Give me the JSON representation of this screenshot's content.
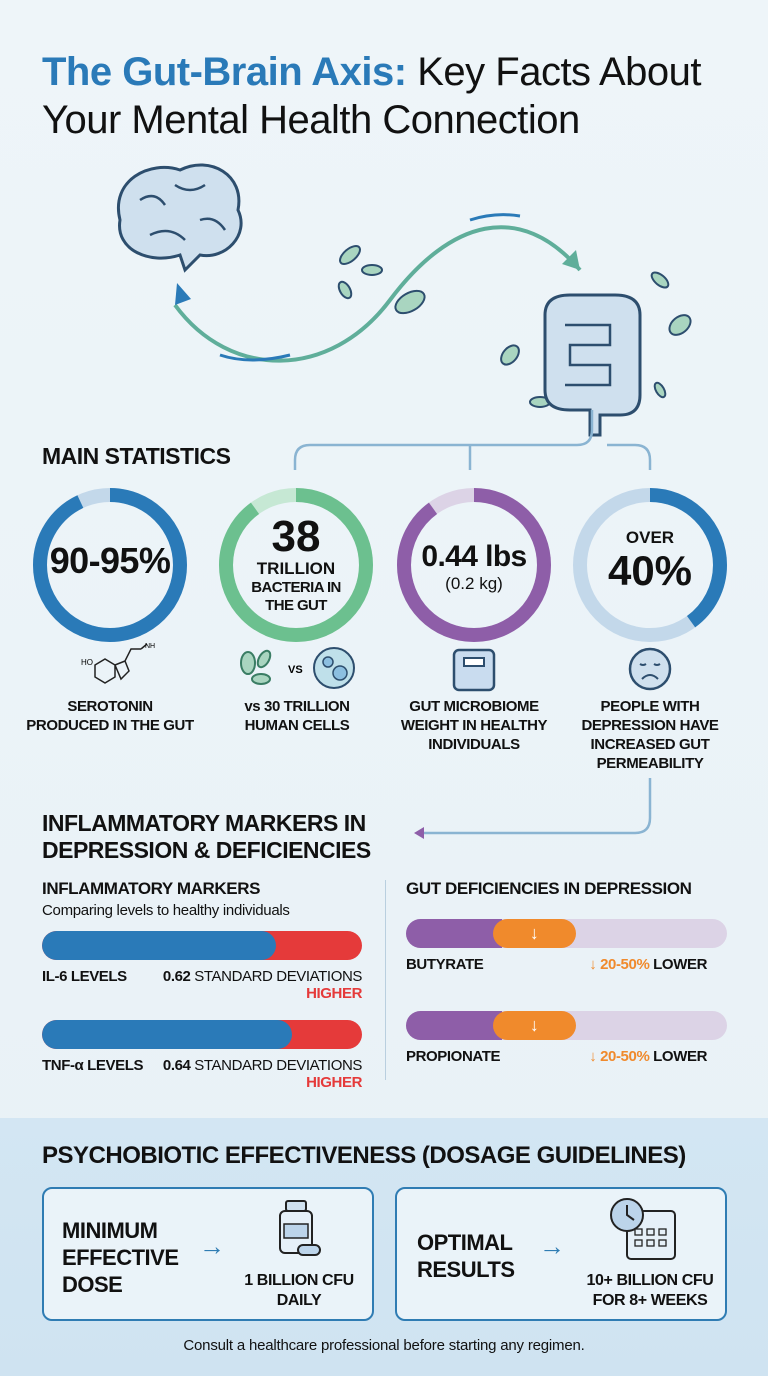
{
  "title": {
    "highlight": "The Gut-Brain Axis:",
    "rest_line1": " Key Facts About",
    "line2": "Your Mental Health Connection"
  },
  "colors": {
    "blue": "#2a7ab8",
    "green": "#6cc08f",
    "purple": "#8e5ea8",
    "red": "#e53a3a",
    "orange": "#f08a2c",
    "light_purple": "#dcd3e6"
  },
  "main_stats": {
    "heading": "MAIN STATISTICS",
    "items": [
      {
        "big": "90-95%",
        "label": "SEROTONIN PRODUCED IN THE GUT",
        "icon": "serotonin-molecule-icon",
        "ring_color": "#2a7ab8",
        "fill": 0.93
      },
      {
        "big": "38",
        "sub1": "TRILLION",
        "sub2": "BACTERIA IN THE GUT",
        "vs": "VS",
        "label": "vs 30 TRILLION HUMAN CELLS",
        "icon": "bacteria-vs-cell-icon",
        "ring_color": "#6cc08f",
        "fill": 0.9
      },
      {
        "big": "0.44 lbs",
        "sub1": "(0.2 kg)",
        "label": "GUT MICROBIOME WEIGHT IN HEALTHY INDIVIDUALS",
        "icon": "scale-icon",
        "ring_color": "#8e5ea8",
        "fill": 0.9
      },
      {
        "pre": "OVER",
        "big": "40%",
        "label": "PEOPLE WITH DEPRESSION HAVE INCREASED GUT PERMEABILITY",
        "icon": "sad-face-icon",
        "ring_color": "#2a7ab8",
        "fill": 0.4
      }
    ]
  },
  "inflammatory": {
    "heading_line1": "INFLAMMATORY MARKERS IN",
    "heading_line2": "DEPRESSION & DEFICIENCIES",
    "left": {
      "heading": "INFLAMMATORY MARKERS",
      "subtitle": "Comparing levels to healthy individuals",
      "rows": [
        {
          "name": "IL-6 LEVELS",
          "value": "0.62",
          "unit": "STANDARD DEVIATIONS",
          "direction": "HIGHER",
          "fill": 0.73
        },
        {
          "name": "TNF-α LEVELS",
          "value": "0.64",
          "unit": "STANDARD DEVIATIONS",
          "direction": "HIGHER",
          "fill": 0.78
        }
      ]
    },
    "right": {
      "heading": "GUT DEFICIENCIES IN DEPRESSION",
      "rows": [
        {
          "name": "BUTYRATE",
          "arrow": "↓",
          "value": "20-50%",
          "direction": "LOWER"
        },
        {
          "name": "PROPIONATE",
          "arrow": "↓",
          "value": "20-50%",
          "direction": "LOWER"
        }
      ]
    }
  },
  "dosage": {
    "heading": "PSYCHOBIOTIC EFFECTIVENESS (DOSAGE GUIDELINES)",
    "cards": [
      {
        "title": [
          "MINIMUM",
          "EFFECTIVE",
          "DOSE"
        ],
        "arrow": "→",
        "value": [
          "1 BILLION CFU",
          "DAILY"
        ],
        "icon": "supplement-bottle-icon"
      },
      {
        "title": [
          "OPTIMAL",
          "RESULTS"
        ],
        "arrow": "→",
        "value": [
          "10+ BILLION CFU",
          "FOR 8+ WEEKS"
        ],
        "icon": "clock-calendar-icon"
      }
    ],
    "footer": "Consult a healthcare professional before starting any regimen."
  }
}
